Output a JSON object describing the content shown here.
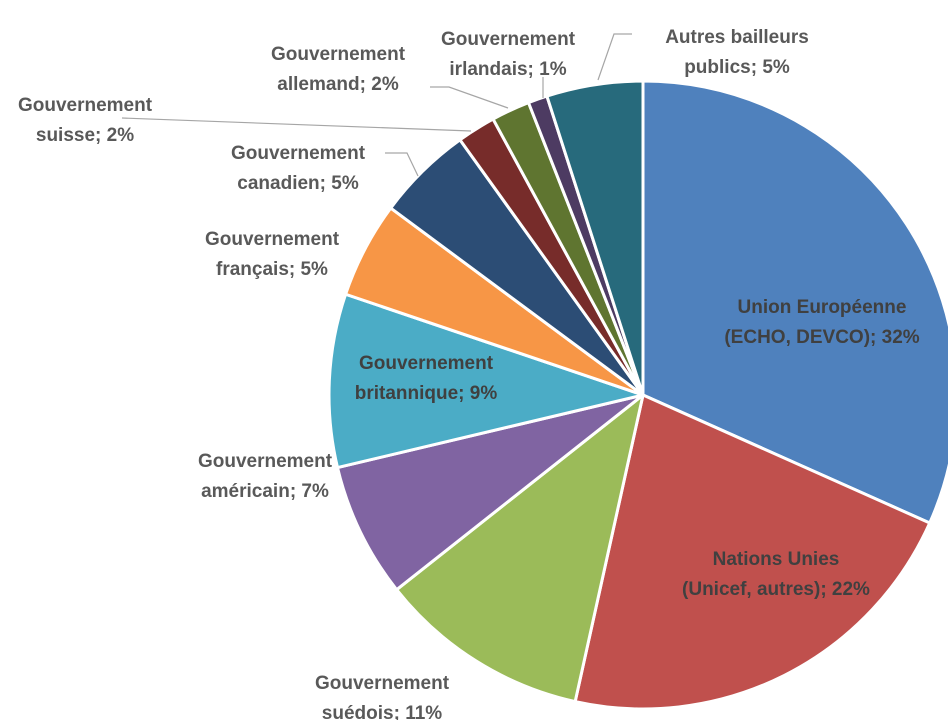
{
  "chart_data": {
    "type": "pie",
    "slices": [
      {
        "label_line1": "Union Européenne",
        "label_line2": "(ECHO, DEVCO); 32%",
        "value": 32,
        "color": "#4F81BD"
      },
      {
        "label_line1": "Nations Unies",
        "label_line2": "(Unicef, autres); 22%",
        "value": 22,
        "color": "#C0504D"
      },
      {
        "label_line1": "Gouvernement",
        "label_line2": "suédois; 11%",
        "value": 11,
        "color": "#9BBB59"
      },
      {
        "label_line1": "Gouvernement",
        "label_line2": "américain; 7%",
        "value": 7,
        "color": "#8064A2"
      },
      {
        "label_line1": "Gouvernement",
        "label_line2": "britannique; 9%",
        "value": 9,
        "color": "#4BACC6"
      },
      {
        "label_line1": "Gouvernement",
        "label_line2": "français; 5%",
        "value": 5,
        "color": "#F79646"
      },
      {
        "label_line1": "Gouvernement",
        "label_line2": "canadien; 5%",
        "value": 5,
        "color": "#2C4D75"
      },
      {
        "label_line1": "Gouvernement",
        "label_line2": "suisse; 2%",
        "value": 2,
        "color": "#772C2A"
      },
      {
        "label_line1": "Gouvernement",
        "label_line2": "allemand; 2%",
        "value": 2,
        "color": "#5F7530"
      },
      {
        "label_line1": "Gouvernement",
        "label_line2": "irlandais; 1%",
        "value": 1,
        "color": "#4D3B62"
      },
      {
        "label_line1": "Autres bailleurs",
        "label_line2": "publics; 5%",
        "value": 5,
        "color": "#276A7C"
      }
    ]
  }
}
